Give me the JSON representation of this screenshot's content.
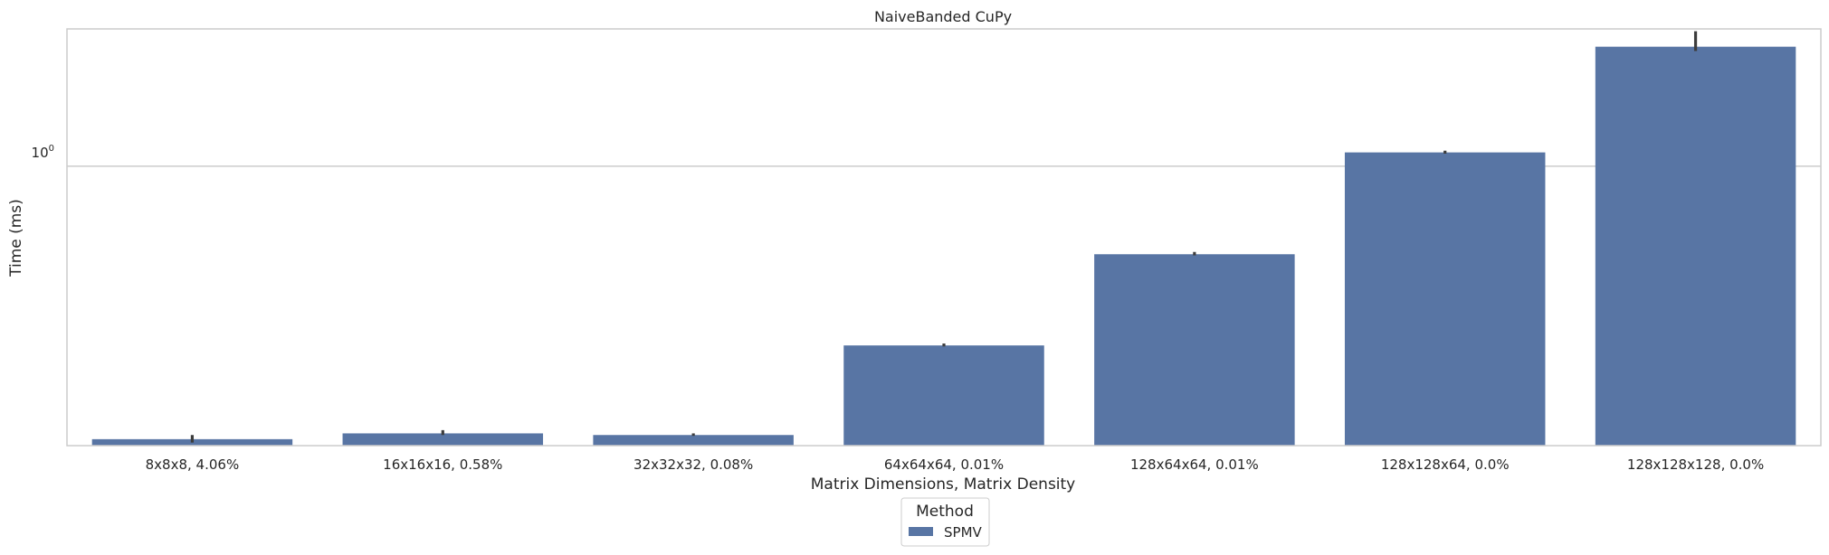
{
  "chart_data": {
    "type": "bar",
    "title": "NaiveBanded CuPy",
    "xlabel": "Matrix Dimensions, Matrix Density",
    "ylabel": "Time (ms)",
    "yscale": "log",
    "ytick_base": "10",
    "ytick_exponent": "0",
    "ylim": [
      0.1955,
      2.23
    ],
    "grid": "horizontal",
    "categories": [
      "8x8x8, 4.06%",
      "16x16x16, 0.58%",
      "32x32x32, 0.08%",
      "64x64x64, 0.01%",
      "128x64x64, 0.01%",
      "128x128x64, 0.0%",
      "128x128x128, 0.0%"
    ],
    "series": [
      {
        "name": "SPMV",
        "color": "#5875a4",
        "values": [
          0.203,
          0.21,
          0.208,
          0.351,
          0.598,
          1.084,
          2.01
        ],
        "error_low": [
          0.199,
          0.208,
          0.207,
          0.349,
          0.594,
          1.076,
          1.96
        ],
        "error_high": [
          0.208,
          0.214,
          0.21,
          0.355,
          0.606,
          1.095,
          2.2
        ]
      }
    ],
    "legend": {
      "title": "Method",
      "placement": "bottom-center"
    }
  }
}
